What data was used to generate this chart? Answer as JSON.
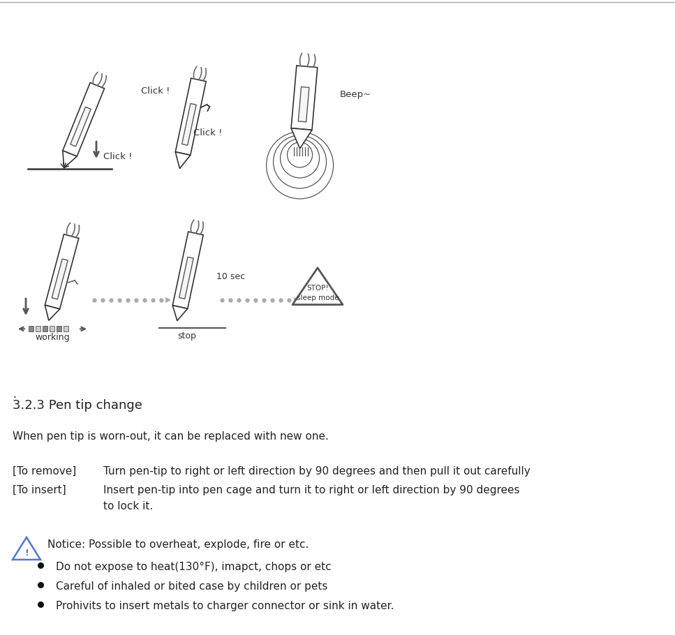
{
  "bg_color": "#ffffff",
  "top_line_color": "#aaaaaa",
  "section_title": "3.2.3 Pen tip change",
  "period": ".",
  "intro_text": "When pen tip is worn-out, it can be replaced with new one.",
  "remove_label": "[To remove]",
  "remove_text": "Turn pen-tip to right or left direction by 90 degrees and then pull it out carefully",
  "insert_label": "[To insert]",
  "insert_text1": "Insert pen-tip into pen cage and turn it to right or left direction by 90 degrees",
  "insert_text2": "to lock it.",
  "notice_text": "Notice: Possible to overheat, explode, fire or etc.",
  "bullet1": "Do not expose to heat(130°F), imapct, chops or etc",
  "bullet2": "Careful of inhaled or bited case by children or pets",
  "bullet3": "Prohivits to insert metals to charger connector or sink in water.",
  "click1": "Click !",
  "click2": "Click !",
  "beep": "Beep~",
  "ten_sec": "10 sec",
  "working": "working",
  "stop": "stop",
  "stop_label": "STOP!\nsleep mode"
}
